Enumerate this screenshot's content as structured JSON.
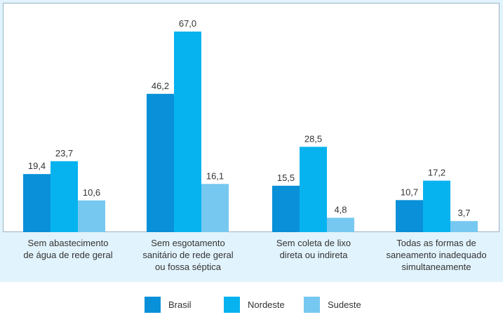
{
  "chart_data": {
    "type": "bar",
    "title": "",
    "xlabel": "",
    "ylabel": "",
    "ylim": [
      0,
      67
    ],
    "grid": false,
    "legend_position": "bottom",
    "categories": [
      [
        "Sem abastecimento",
        "de água de rede geral"
      ],
      [
        "Sem esgotamento",
        "sanitário de rede geral",
        "ou fossa séptica"
      ],
      [
        "Sem coleta de lixo",
        "direta ou indireta"
      ],
      [
        "Todas as formas de",
        "saneamento inadequado",
        "simultaneamente"
      ]
    ],
    "series": [
      {
        "name": "Brasil",
        "color": "#0990d8",
        "values": [
          19.4,
          46.2,
          15.5,
          10.7
        ],
        "labels": [
          "19,4",
          "46,2",
          "15,5",
          "10,7"
        ]
      },
      {
        "name": "Nordeste",
        "color": "#07b3ef",
        "values": [
          23.7,
          67.0,
          28.5,
          17.2
        ],
        "labels": [
          "23,7",
          "67,0",
          "28,5",
          "17,2"
        ]
      },
      {
        "name": "Sudeste",
        "color": "#76c8f0",
        "values": [
          10.6,
          16.1,
          4.8,
          3.7
        ],
        "labels": [
          "10,6",
          "16,1",
          "4,8",
          "3,7"
        ]
      }
    ]
  }
}
